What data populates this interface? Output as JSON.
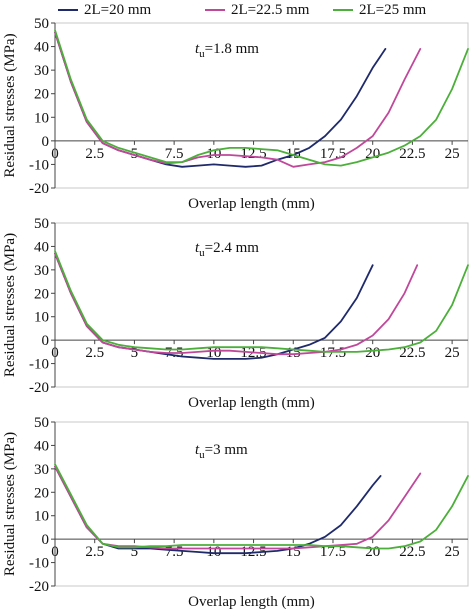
{
  "colors": {
    "s20": "#1f2a6b",
    "s225": "#c0489b",
    "s25": "#4caf3a"
  },
  "legend": [
    {
      "label": "2L=20 mm",
      "color": "#1f2a6b"
    },
    {
      "label": "2L=22.5 mm",
      "color": "#c0489b"
    },
    {
      "label": "2L=25 mm",
      "color": "#4caf3a"
    }
  ],
  "chart_data": [
    {
      "type": "line",
      "annotation_italic": "t",
      "annotation_sub": "u",
      "annotation_rest": "=1.8 mm",
      "xlabel": "Overlap length (mm)",
      "ylabel": "Residual stresses (MPa)",
      "xlim": [
        0,
        26
      ],
      "ylim": [
        -20,
        50
      ],
      "xticks": [
        "0",
        "2.5",
        "5",
        "7.5",
        "10",
        "12.5",
        "15",
        "17.5",
        "20",
        "22.5",
        "25"
      ],
      "yticks": [
        "-20",
        "-10",
        "0",
        "10",
        "20",
        "30",
        "40",
        "50"
      ],
      "series": [
        {
          "name": "2L=20 mm",
          "color": "#1f2a6b",
          "x": [
            0,
            1,
            2,
            3,
            4,
            5,
            6,
            7,
            8,
            9,
            10,
            11,
            12,
            13,
            14,
            15,
            16,
            17,
            18,
            19,
            20,
            20.8
          ],
          "y": [
            46,
            25,
            8,
            -1,
            -4,
            -6,
            -8,
            -10,
            -11,
            -10.5,
            -10,
            -10.5,
            -11,
            -10.5,
            -8,
            -6,
            -3,
            2,
            9,
            19,
            31,
            39
          ]
        },
        {
          "name": "2L=22.5 mm",
          "color": "#c0489b",
          "x": [
            0,
            1,
            2,
            3,
            4,
            5,
            6,
            7,
            8,
            9,
            10,
            11,
            12,
            13,
            14,
            15,
            16,
            17,
            18,
            19,
            20,
            21,
            22,
            23
          ],
          "y": [
            46,
            25,
            8,
            -1,
            -4,
            -6,
            -8,
            -9.5,
            -9,
            -7,
            -6,
            -6,
            -6.5,
            -7,
            -8,
            -11,
            -10,
            -9,
            -7,
            -3,
            2,
            12,
            26,
            39
          ]
        },
        {
          "name": "2L=25 mm",
          "color": "#4caf3a",
          "x": [
            0,
            1,
            2,
            3,
            4,
            5,
            6,
            7,
            8,
            9,
            10,
            11,
            12,
            13,
            14,
            15,
            16,
            17,
            18,
            19,
            20,
            21,
            22,
            23,
            24,
            25,
            26
          ],
          "y": [
            47,
            26,
            9,
            0,
            -3,
            -5,
            -7,
            -9,
            -9,
            -6,
            -4,
            -3,
            -3,
            -3.5,
            -4,
            -6,
            -8,
            -10,
            -10.5,
            -9,
            -7,
            -5,
            -2,
            2,
            9,
            22,
            39
          ]
        }
      ]
    },
    {
      "type": "line",
      "annotation_italic": "t",
      "annotation_sub": "u",
      "annotation_rest": "=2.4 mm",
      "xlabel": "Overlap length (mm)",
      "ylabel": "Residual stresses (MPa)",
      "xlim": [
        0,
        26
      ],
      "ylim": [
        -20,
        50
      ],
      "xticks": [
        "0",
        "2.5",
        "5",
        "7.5",
        "10",
        "12.5",
        "15",
        "17.5",
        "20",
        "22.5",
        "25"
      ],
      "yticks": [
        "-20",
        "-10",
        "0",
        "10",
        "20",
        "30",
        "40",
        "50"
      ],
      "series": [
        {
          "name": "2L=20 mm",
          "color": "#1f2a6b",
          "x": [
            0,
            1,
            2,
            3,
            4,
            5,
            6,
            7,
            8,
            9,
            10,
            11,
            12,
            13,
            14,
            15,
            16,
            17,
            18,
            19,
            20
          ],
          "y": [
            37,
            20,
            6,
            -1,
            -3,
            -4,
            -5,
            -6,
            -7,
            -7.5,
            -8,
            -8,
            -8,
            -7.5,
            -6,
            -4,
            -2,
            1,
            8,
            18,
            32
          ]
        },
        {
          "name": "2L=22.5 mm",
          "color": "#c0489b",
          "x": [
            0,
            1,
            2,
            3,
            4,
            5,
            6,
            7,
            8,
            9,
            10,
            11,
            12,
            13,
            14,
            15,
            16,
            17,
            18,
            19,
            20,
            21,
            22,
            22.8
          ],
          "y": [
            37,
            20,
            6,
            -1,
            -3,
            -4,
            -5,
            -5.5,
            -5.5,
            -5,
            -4.5,
            -4.5,
            -5,
            -5.5,
            -6,
            -6,
            -5.5,
            -5,
            -4,
            -2,
            2,
            9,
            20,
            32
          ]
        },
        {
          "name": "2L=25 mm",
          "color": "#4caf3a",
          "x": [
            0,
            1,
            2,
            3,
            4,
            5,
            6,
            7,
            8,
            9,
            10,
            11,
            12,
            13,
            14,
            15,
            16,
            17,
            18,
            19,
            20,
            21,
            22,
            23,
            24,
            25,
            26
          ],
          "y": [
            38,
            21,
            7,
            0,
            -2,
            -3,
            -3.5,
            -4,
            -4,
            -3.5,
            -3,
            -3,
            -3,
            -3,
            -3.5,
            -4,
            -4.5,
            -5,
            -5,
            -5,
            -4.5,
            -4,
            -3,
            -1,
            4,
            15,
            32
          ]
        }
      ]
    },
    {
      "type": "line",
      "annotation_italic": "t",
      "annotation_sub": "u",
      "annotation_rest": "=3 mm",
      "xlabel": "Overlap length (mm)",
      "ylabel": "Residual stresses (MPa)",
      "xlim": [
        0,
        26
      ],
      "ylim": [
        -20,
        50
      ],
      "xticks": [
        "0",
        "2.5",
        "5",
        "7.5",
        "10",
        "12.5",
        "15",
        "17.5",
        "20",
        "22.5",
        "25"
      ],
      "yticks": [
        "-20",
        "-10",
        "0",
        "10",
        "20",
        "30",
        "40",
        "50"
      ],
      "series": [
        {
          "name": "2L=20 mm",
          "color": "#1f2a6b",
          "x": [
            0,
            1,
            2,
            3,
            4,
            5,
            6,
            7,
            8,
            9,
            10,
            11,
            12,
            13,
            14,
            15,
            16,
            17,
            18,
            19,
            20,
            20.5
          ],
          "y": [
            31,
            18,
            5,
            -2,
            -4,
            -4,
            -4,
            -4.5,
            -5,
            -5.5,
            -6,
            -6,
            -6,
            -5.5,
            -5,
            -4,
            -2,
            1,
            6,
            14,
            23,
            27
          ]
        },
        {
          "name": "2L=22.5 mm",
          "color": "#c0489b",
          "x": [
            0,
            1,
            2,
            3,
            4,
            5,
            6,
            7,
            8,
            9,
            10,
            11,
            12,
            13,
            14,
            15,
            16,
            17,
            18,
            19,
            20,
            21,
            22,
            23
          ],
          "y": [
            31,
            18,
            5,
            -2,
            -3,
            -3,
            -3.5,
            -4,
            -4,
            -4,
            -4,
            -4,
            -4,
            -4,
            -4,
            -4,
            -3.5,
            -3,
            -2.5,
            -2,
            1,
            8,
            18,
            28
          ]
        },
        {
          "name": "2L=25 mm",
          "color": "#4caf3a",
          "x": [
            0,
            1,
            2,
            3,
            4,
            5,
            6,
            7,
            8,
            9,
            10,
            11,
            12,
            13,
            14,
            15,
            16,
            17,
            18,
            19,
            20,
            21,
            22,
            23,
            24,
            25,
            26
          ],
          "y": [
            32,
            19,
            6,
            -2,
            -3.5,
            -3.5,
            -3,
            -3,
            -2.5,
            -2.5,
            -2.5,
            -2.5,
            -2.5,
            -2.5,
            -2.5,
            -2.5,
            -2.5,
            -3,
            -3,
            -3.5,
            -4,
            -4,
            -3,
            -1,
            4,
            14,
            27
          ]
        }
      ]
    }
  ]
}
